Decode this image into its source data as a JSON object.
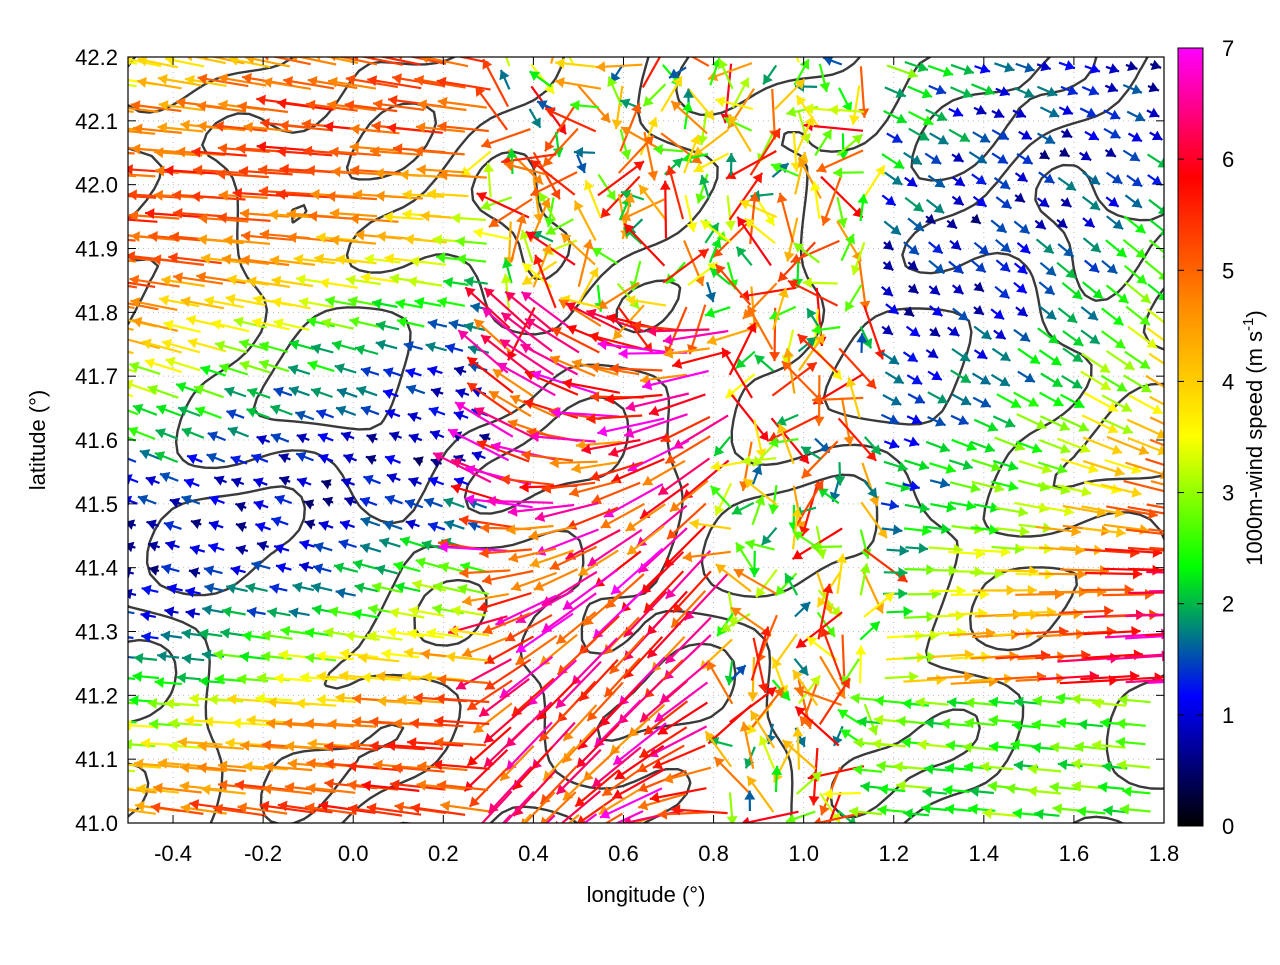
{
  "chart_data": {
    "type": "quiver",
    "xlabel": "longitude (°)",
    "ylabel": "latitude (°)",
    "xlim": [
      -0.5,
      1.8
    ],
    "ylim": [
      41.0,
      42.2
    ],
    "xticks": [
      -0.4,
      -0.2,
      0.0,
      0.2,
      0.4,
      0.6,
      0.8,
      1.0,
      1.2,
      1.4,
      1.6,
      1.8
    ],
    "xtick_labels": [
      "-0.4",
      "-0.2",
      "0.0",
      "0.2",
      "0.4",
      "0.6",
      "0.8",
      "1.0",
      "1.2",
      "1.4",
      "1.6",
      "1.8"
    ],
    "yticks": [
      41.0,
      41.1,
      41.2,
      41.3,
      41.4,
      41.5,
      41.6,
      41.7,
      41.8,
      41.9,
      42.0,
      42.1,
      42.2
    ],
    "ytick_labels": [
      "41.0",
      "41.1",
      "41.2",
      "41.3",
      "41.4",
      "41.5",
      "41.6",
      "41.7",
      "41.8",
      "41.9",
      "42.0",
      "42.1",
      "42.2"
    ],
    "grid": true,
    "colorbar": {
      "label": "1000m-wind speed (m s",
      "label_superscript": "-1",
      "label_suffix": ")",
      "range": [
        0,
        7
      ],
      "ticks": [
        0,
        1,
        2,
        3,
        4,
        5,
        6,
        7
      ],
      "tick_labels": [
        "0",
        "1",
        "2",
        "3",
        "4",
        "5",
        "6",
        "7"
      ],
      "colors": [
        "#000000",
        "#0000ff",
        "#00ff00",
        "#ffff00",
        "#ff8c00",
        "#ff0000",
        "#ff00ff"
      ]
    },
    "contour_color": "#3a3a3a"
  }
}
